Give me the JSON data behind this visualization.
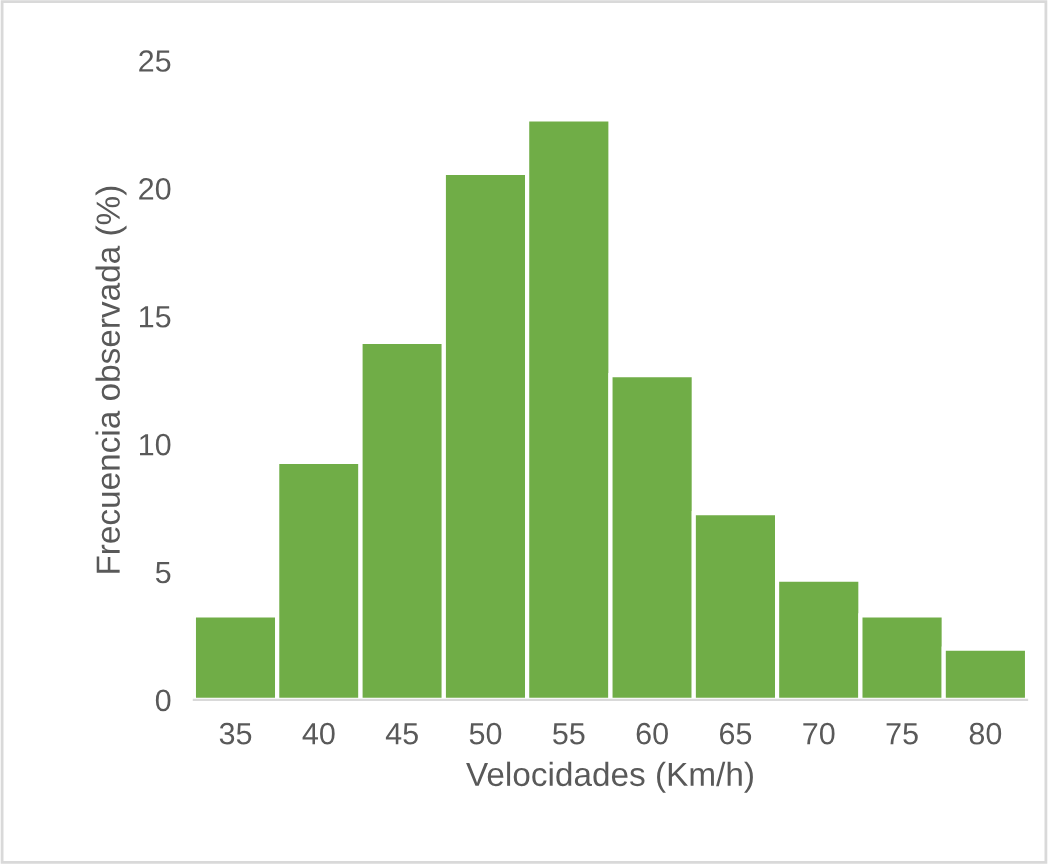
{
  "chart_data": {
    "type": "bar",
    "xlabel": "Velocidades (Km/h)",
    "ylabel": "Frecuencia observada (%)",
    "categories": [
      "35",
      "40",
      "45",
      "50",
      "55",
      "60",
      "65",
      "70",
      "75",
      "80"
    ],
    "values": [
      3.3,
      9.3,
      14.0,
      20.6,
      22.7,
      12.7,
      7.3,
      4.7,
      3.3,
      2.0
    ],
    "color": "#70ad47",
    "ylim": [
      0,
      25
    ],
    "yticks": [
      0,
      5,
      10,
      15,
      20,
      25
    ],
    "grid": false
  }
}
